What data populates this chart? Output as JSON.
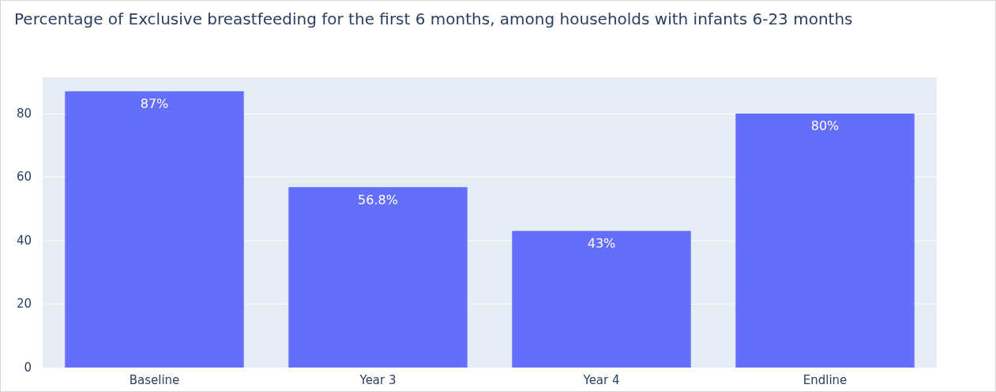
{
  "chart_data": {
    "type": "bar",
    "title": "Percentage of Exclusive breastfeeding for the first 6 months, among households with infants 6-23 months",
    "categories": [
      "Baseline",
      "Year 3",
      "Year 4",
      "Endline"
    ],
    "values": [
      87,
      56.8,
      43,
      80
    ],
    "value_labels": [
      "87%",
      "56.8%",
      "43%",
      "80%"
    ],
    "color": "#636efa",
    "ylim": [
      0,
      91.4
    ],
    "yticks": [
      0,
      20,
      40,
      60,
      80
    ],
    "grid": "y"
  }
}
